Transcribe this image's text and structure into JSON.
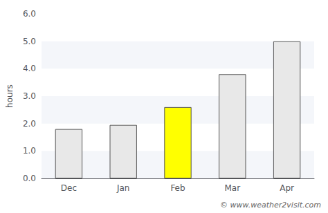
{
  "chart_data": {
    "type": "bar",
    "categories": [
      "Dec",
      "Jan",
      "Feb",
      "Mar",
      "Apr"
    ],
    "values": [
      1.8,
      1.95,
      2.6,
      3.8,
      5.0
    ],
    "colors": [
      "#e8e8e8",
      "#e8e8e8",
      "#ffff00",
      "#e8e8e8",
      "#e8e8e8"
    ],
    "ylabel": "hours",
    "ylim": [
      0.0,
      6.0
    ],
    "yticks": [
      {
        "value": 0,
        "label": "0.0"
      },
      {
        "value": 1,
        "label": "1.0"
      },
      {
        "value": 2,
        "label": "2.0"
      },
      {
        "value": 3,
        "label": "3.0"
      },
      {
        "value": 4,
        "label": "4.0"
      },
      {
        "value": 5,
        "label": "5.0"
      },
      {
        "value": 6,
        "label": "6.0"
      }
    ],
    "grid": false,
    "annotation": "© www.weather2visit.com"
  }
}
